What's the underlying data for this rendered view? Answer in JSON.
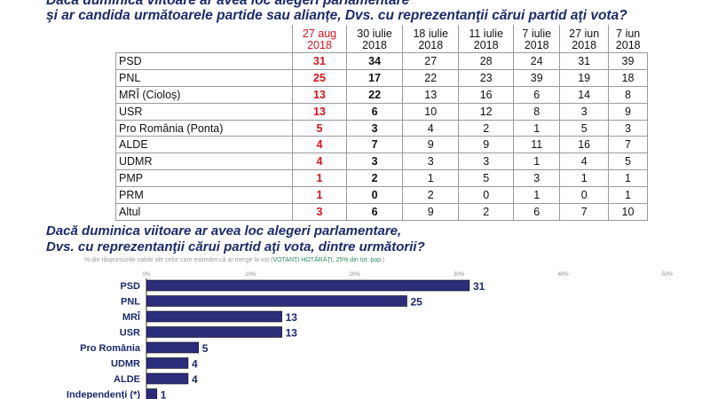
{
  "poll_table": {
    "title_line1": "Dacă duminica viitoare ar avea loc alegeri parlamentare",
    "title_line2": "şi ar candida următoarele partide sau alianțe, Dvs. cu reprezentanţii cărui partid aţi vota?",
    "columns": [
      {
        "line1": "27 aug",
        "line2": "2018"
      },
      {
        "line1": "30 iulie",
        "line2": "2018"
      },
      {
        "line1": "18 iulie",
        "line2": "2018"
      },
      {
        "line1": "11 iulie",
        "line2": "2018"
      },
      {
        "line1": "7 iulie",
        "line2": "2018"
      },
      {
        "line1": "27 iun",
        "line2": "2018"
      },
      {
        "line1": "7 iun",
        "line2": "2018"
      }
    ],
    "rows": [
      {
        "party": "PSD",
        "values": [
          "31",
          "34",
          "27",
          "28",
          "24",
          "31",
          "39"
        ]
      },
      {
        "party": "PNL",
        "values": [
          "25",
          "17",
          "22",
          "23",
          "39",
          "19",
          "18"
        ]
      },
      {
        "party": "MRÎ (Cioloș)",
        "values": [
          "13",
          "22",
          "13",
          "16",
          "6",
          "14",
          "8"
        ]
      },
      {
        "party": "USR",
        "values": [
          "13",
          "6",
          "10",
          "12",
          "8",
          "3",
          "9"
        ]
      },
      {
        "party": "Pro România (Ponta)",
        "values": [
          "5",
          "3",
          "4",
          "2",
          "1",
          "5",
          "3"
        ]
      },
      {
        "party": "ALDE",
        "values": [
          "4",
          "7",
          "9",
          "9",
          "11",
          "16",
          "7"
        ]
      },
      {
        "party": "UDMR",
        "values": [
          "4",
          "3",
          "3",
          "3",
          "1",
          "4",
          "5"
        ]
      },
      {
        "party": "PMP",
        "values": [
          "1",
          "2",
          "1",
          "5",
          "3",
          "1",
          "1"
        ]
      },
      {
        "party": "PRM",
        "values": [
          "1",
          "0",
          "2",
          "0",
          "1",
          "0",
          "1"
        ]
      },
      {
        "party": "Altul",
        "values": [
          "3",
          "6",
          "9",
          "2",
          "6",
          "7",
          "10"
        ]
      }
    ],
    "highlight_color": "#d4141c"
  },
  "bar_section": {
    "title_line1": "Dacă duminica viitoare ar avea loc alegeri parlamentare,",
    "title_line2": "Dvs. cu reprezentanţii cărui partid aţi vota, dintre următorii?",
    "note_prefix": "% din răspunsurile valide ale celor care estimăm că ar merge la vot (",
    "note_highlight": "VOTANŢI HOTĂRÂŢI, 25% din tot. pop.",
    "note_suffix": ")"
  },
  "chart_data": {
    "type": "bar",
    "orientation": "horizontal",
    "categories": [
      "PSD",
      "PNL",
      "MRÎ",
      "USR",
      "Pro România",
      "UDMR",
      "ALDE",
      "Independenți (*)"
    ],
    "values": [
      31,
      25,
      13,
      13,
      5,
      4,
      4,
      1
    ],
    "xlim": [
      0,
      50
    ],
    "xticks": [
      "0%",
      "10%",
      "20%",
      "30%",
      "40%",
      "50%"
    ],
    "bar_color": "#2b2d7a",
    "grid": false
  }
}
